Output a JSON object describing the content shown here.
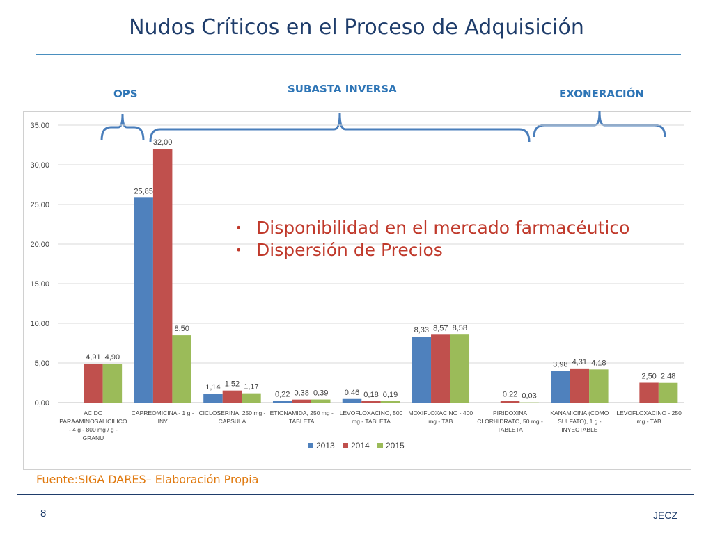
{
  "page": {
    "title": "Nudos Críticos en el Proceso de Adquisición",
    "source": "Fuente:SIGA DARES– Elaboración Propia",
    "page_number": "8",
    "author": "JECZ"
  },
  "groups": [
    {
      "label": "OPS"
    },
    {
      "label": "SUBASTA INVERSA"
    },
    {
      "label": "EXONERACIÓN"
    }
  ],
  "bullets": [
    "Disponibilidad en el mercado farmacéutico",
    "Dispersión de Precios"
  ],
  "colors": {
    "series_2013": "#4f81bd",
    "series_2014": "#c0504d",
    "series_2015": "#9bbb59",
    "brace": "#4a7ebb",
    "bullet_text": "#c0392b"
  },
  "chart_data": {
    "type": "bar",
    "categories": [
      [
        "ACIDO",
        "PARAAMINOSALICILICO",
        "- 4 g - 800 mg / g -",
        "GRANU"
      ],
      [
        "CAPREOMICINA - 1 g -",
        "INY"
      ],
      [
        "CICLOSERINA, 250 mg -",
        "CAPSULA"
      ],
      [
        "ETIONAMIDA, 250 mg -",
        "TABLETA"
      ],
      [
        "LEVOFLOXACINO, 500",
        "mg - TABLETA"
      ],
      [
        "MOXIFLOXACINO - 400",
        "mg - TAB"
      ],
      [
        "PIRIDOXINA",
        "CLORHIDRATO, 50 mg -",
        "TABLETA"
      ],
      [
        "KANAMICINA  (COMO",
        "SULFATO), 1 g -",
        "INYECTABLE"
      ],
      [
        "LEVOFLOXACINO - 250",
        "mg - TAB"
      ]
    ],
    "series": [
      {
        "name": "2013",
        "values": [
          null,
          25.85,
          1.14,
          0.22,
          0.46,
          8.33,
          null,
          3.98,
          null
        ],
        "labels": [
          "",
          "25,85",
          "1,14",
          "0,22",
          "0,46",
          "8,33",
          "",
          "3,98",
          ""
        ]
      },
      {
        "name": "2014",
        "values": [
          4.91,
          32.0,
          1.52,
          0.38,
          0.18,
          8.57,
          0.22,
          4.31,
          2.5
        ],
        "labels": [
          "4,91",
          "32,00",
          "1,52",
          "0,38",
          "0,18",
          "8,57",
          "0,22",
          "4,31",
          "2,50"
        ]
      },
      {
        "name": "2015",
        "values": [
          4.9,
          8.5,
          1.17,
          0.39,
          0.19,
          8.58,
          0.03,
          4.18,
          2.48
        ],
        "labels": [
          "4,90",
          "8,50",
          "1,17",
          "0,39",
          "0,19",
          "8,58",
          "0,03",
          "4,18",
          "2,48"
        ]
      }
    ],
    "yticks": [
      "0,00",
      "5,00",
      "10,00",
      "15,00",
      "20,00",
      "25,00",
      "30,00",
      "35,00"
    ],
    "ylim": [
      0,
      35
    ],
    "grid": true,
    "legend_position": "bottom"
  }
}
